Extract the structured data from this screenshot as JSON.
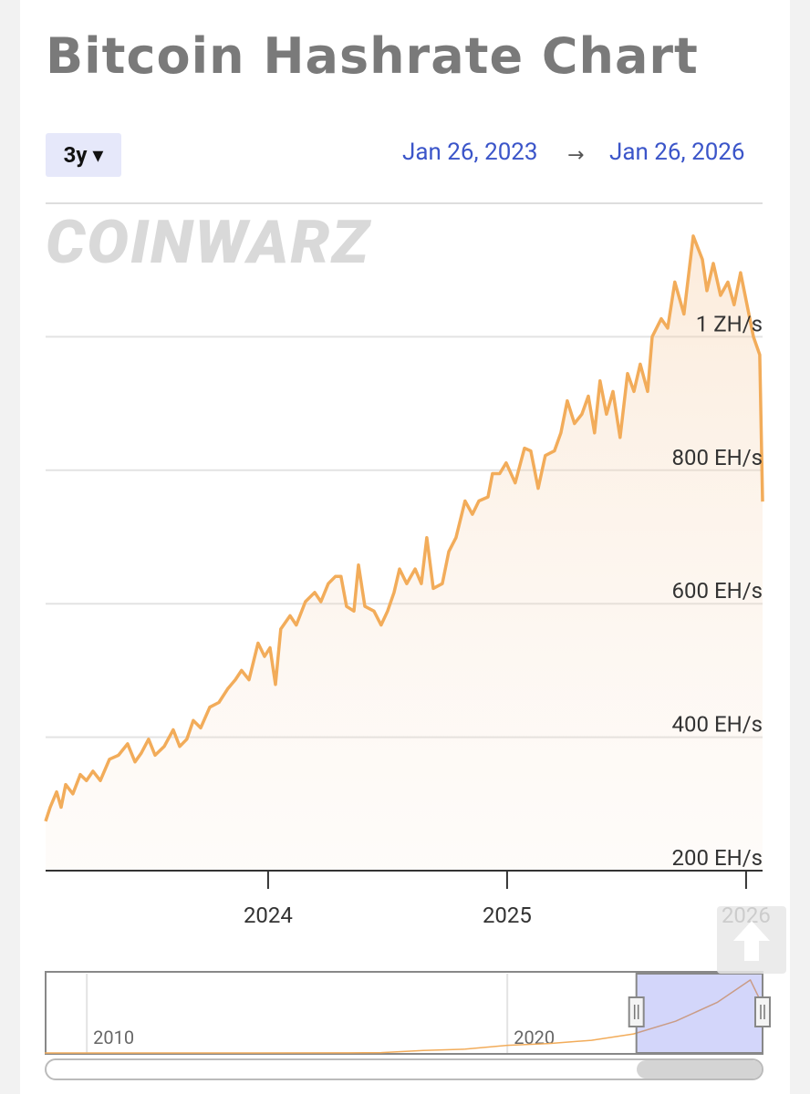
{
  "title": "Bitcoin Hashrate Chart",
  "range_button": "3y ▾",
  "date_from": "Jan 26, 2023",
  "arrow": "→",
  "date_to": "Jan 26, 2026",
  "watermark": "COINWARZ",
  "chart_data": {
    "type": "line",
    "x": [
      2023.069,
      2023.088,
      2023.115,
      2023.134,
      2023.153,
      2023.183,
      2023.214,
      2023.24,
      2023.267,
      2023.298,
      2023.336,
      2023.374,
      2023.412,
      2023.443,
      2023.469,
      2023.5,
      2023.527,
      2023.565,
      2023.603,
      2023.63,
      2023.66,
      2023.687,
      2023.718,
      2023.756,
      2023.794,
      2023.832,
      2023.863,
      2023.889,
      2023.92,
      2023.958,
      2023.985,
      2024.008,
      2024.031,
      2024.053,
      2024.092,
      2024.118,
      2024.156,
      2024.195,
      2024.221,
      2024.252,
      2024.282,
      2024.305,
      2024.328,
      2024.359,
      2024.378,
      2024.405,
      2024.443,
      2024.473,
      2024.5,
      2024.527,
      2024.55,
      2024.58,
      2024.615,
      2024.641,
      2024.664,
      2024.691,
      2024.729,
      2024.756,
      2024.786,
      2024.824,
      2024.855,
      2024.882,
      2024.92,
      2024.939,
      2024.969,
      2024.996,
      2025.034,
      2025.073,
      2025.099,
      2025.13,
      2025.16,
      2025.198,
      2025.225,
      2025.252,
      2025.282,
      2025.313,
      2025.34,
      2025.366,
      2025.389,
      2025.416,
      2025.443,
      2025.473,
      2025.504,
      2025.531,
      2025.557,
      2025.588,
      2025.607,
      2025.645,
      2025.672,
      2025.702,
      2025.74,
      2025.779,
      2025.817,
      2025.836,
      2025.863,
      2025.893,
      2025.924,
      2025.95,
      2025.977,
      2026.0,
      2026.031,
      2026.057,
      2026.069
    ],
    "series": [
      {
        "color": "#f2ac5a",
        "values": [
          274,
          295,
          318,
          295,
          329,
          315,
          344,
          335,
          349,
          335,
          367,
          373,
          390,
          363,
          376,
          397,
          373,
          386,
          411,
          386,
          397,
          425,
          414,
          445,
          452,
          473,
          486,
          500,
          486,
          541,
          521,
          534,
          479,
          562,
          582,
          568,
          603,
          617,
          603,
          630,
          641,
          641,
          596,
          589,
          658,
          596,
          589,
          568,
          589,
          617,
          652,
          630,
          652,
          630,
          699,
          623,
          630,
          678,
          699,
          754,
          734,
          754,
          760,
          795,
          795,
          811,
          781,
          833,
          829,
          773,
          822,
          829,
          856,
          904,
          870,
          884,
          911,
          856,
          934,
          884,
          918,
          849,
          945,
          918,
          959,
          918,
          1000,
          1027,
          1013,
          1082,
          1034,
          1151,
          1116,
          1069,
          1110,
          1062,
          1082,
          1048,
          1096,
          1055,
          1000,
          973,
          753
        ]
      }
    ],
    "xlim": [
      2023.069,
      2026.069
    ],
    "xticks": [
      2024,
      2025,
      2026
    ],
    "ylim": [
      200,
      1200
    ],
    "yticks": [
      {
        "value": 200,
        "label": "200 EH/s"
      },
      {
        "value": 400,
        "label": "400 EH/s"
      },
      {
        "value": 600,
        "label": "600 EH/s"
      },
      {
        "value": 800,
        "label": "800 EH/s"
      },
      {
        "value": 1000,
        "label": "1 ZH/s"
      }
    ],
    "grid": true
  },
  "navigator": {
    "type": "line",
    "x": [
      2009,
      2014,
      2016,
      2017,
      2018,
      2019,
      2020,
      2021,
      2022,
      2023,
      2024,
      2025,
      2025.779,
      2026.069
    ],
    "values": [
      0,
      0.2,
      1,
      6,
      40,
      60,
      120,
      150,
      200,
      300,
      500,
      800,
      1151,
      753
    ],
    "color": "#f2ac5a",
    "xlim": [
      2009.02,
      2026.069
    ],
    "ylim": [
      0,
      1250
    ],
    "xticks": [
      2010,
      2020
    ]
  }
}
